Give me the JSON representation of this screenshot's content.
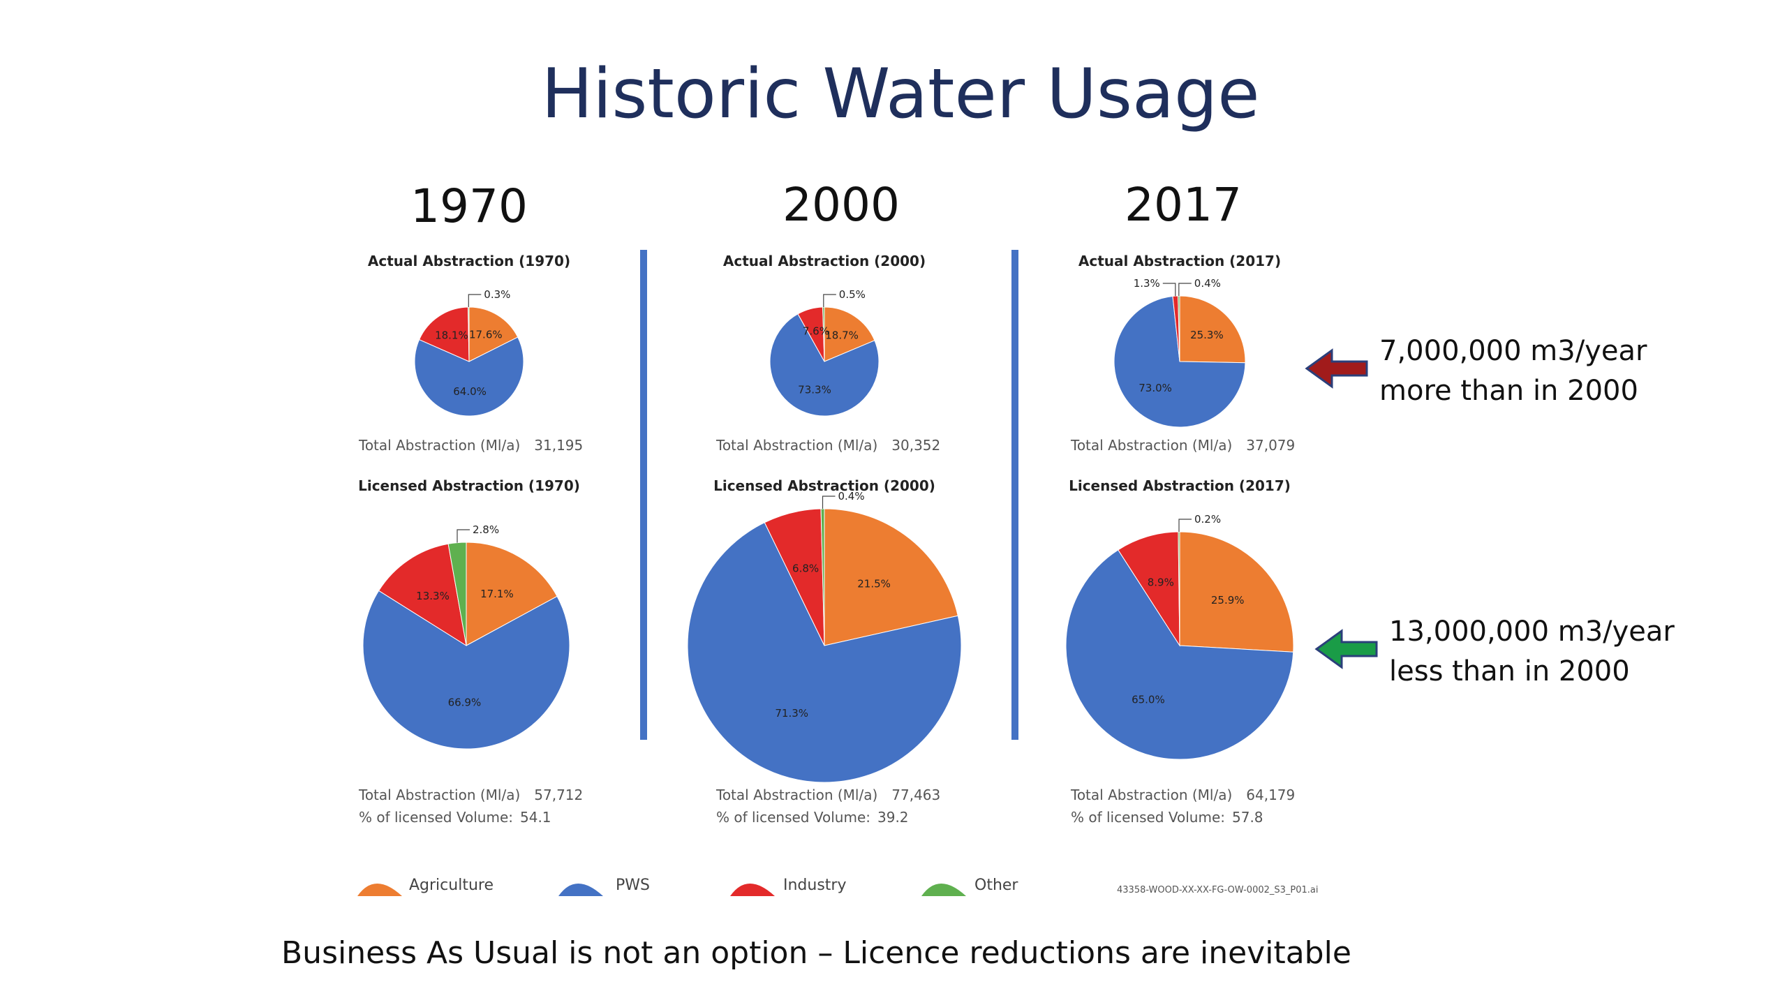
{
  "title": "Historic Water Usage",
  "footer": "Business As Usual is not an option – Licence reductions are inevitable",
  "file_id": "43358-WOOD-XX-XX-FG-OW-0002_S3_P01.ai",
  "colors": {
    "Agriculture": "#ed7d31",
    "PWS": "#4472c4",
    "Industry": "#e32a2a",
    "Other": "#5fb04f",
    "divider": "#4472c4",
    "arrow_up": "#a11b1b",
    "arrow_down": "#1a9c47"
  },
  "legend": [
    {
      "name": "Agriculture",
      "icon": "agriculture-wedge-icon"
    },
    {
      "name": "PWS",
      "icon": "pws-wedge-icon"
    },
    {
      "name": "Industry",
      "icon": "industry-wedge-icon"
    },
    {
      "name": "Other",
      "icon": "other-wedge-icon"
    }
  ],
  "years": [
    {
      "year": "1970",
      "actual_total": "31,195",
      "licensed_total": "57,712",
      "pct_licensed": "54.1"
    },
    {
      "year": "2000",
      "actual_total": "30,352",
      "licensed_total": "77,463",
      "pct_licensed": "39.2"
    },
    {
      "year": "2017",
      "actual_total": "37,079",
      "licensed_total": "64,179",
      "pct_licensed": "57.8"
    }
  ],
  "total_label": "Total Abstraction (Ml/a)",
  "pct_label": "% of licensed Volume:",
  "annotations": [
    {
      "line1": "7,000,000 m3/year",
      "line2": "more than in 2000",
      "arrow": "left-arrow-icon"
    },
    {
      "line1": "13,000,000 m3/year",
      "line2": "less than in 2000",
      "arrow": "left-arrow-icon"
    }
  ],
  "chart_data": [
    {
      "type": "pie",
      "title": "Actual Abstraction (1970)",
      "labels": [
        "Agriculture",
        "PWS",
        "Industry",
        "Other"
      ],
      "values": [
        17.6,
        64.0,
        18.1,
        0.3
      ],
      "value_labels": [
        "17.6%",
        "64.0%",
        "18.1%",
        "0.3%"
      ]
    },
    {
      "type": "pie",
      "title": "Actual Abstraction (2000)",
      "labels": [
        "Agriculture",
        "PWS",
        "Industry",
        "Other"
      ],
      "values": [
        18.7,
        73.3,
        7.6,
        0.5
      ],
      "value_labels": [
        "18.7%",
        "73.3%",
        "7.6%",
        "0.5%"
      ]
    },
    {
      "type": "pie",
      "title": "Actual Abstraction (2017)",
      "labels": [
        "Agriculture",
        "PWS",
        "Industry",
        "Other"
      ],
      "values": [
        25.3,
        73.0,
        1.3,
        0.4
      ],
      "value_labels": [
        "25.3%",
        "73.0%",
        "1.3%",
        "0.4%"
      ]
    },
    {
      "type": "pie",
      "title": "Licensed Abstraction (1970)",
      "labels": [
        "Agriculture",
        "PWS",
        "Industry",
        "Other"
      ],
      "values": [
        17.1,
        66.9,
        13.3,
        2.8
      ],
      "value_labels": [
        "17.1%",
        "66.9%",
        "13.3%",
        "2.8%"
      ]
    },
    {
      "type": "pie",
      "title": "Licensed Abstraction (2000)",
      "labels": [
        "Agriculture",
        "PWS",
        "Industry",
        "Other"
      ],
      "values": [
        21.5,
        71.3,
        6.8,
        0.4
      ],
      "value_labels": [
        "21.5%",
        "71.3%",
        "6.8%",
        "0.4%"
      ]
    },
    {
      "type": "pie",
      "title": "Licensed Abstraction (2017)",
      "labels": [
        "Agriculture",
        "PWS",
        "Industry",
        "Other"
      ],
      "values": [
        25.9,
        65.0,
        8.9,
        0.2
      ],
      "value_labels": [
        "25.9%",
        "65.0%",
        "8.9%",
        "0.2%"
      ]
    }
  ]
}
